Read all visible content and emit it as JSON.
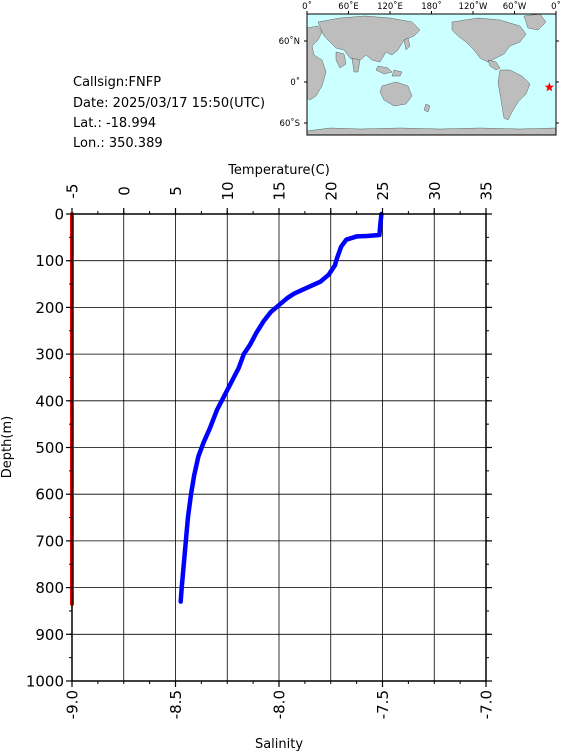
{
  "station": {
    "callsign": "Callsign:FNFP",
    "date": "Date:  2025/03/17 15:50(UTC)",
    "lat": "Lat.:  -18.994",
    "lon": "Lon.:  350.389"
  },
  "map": {
    "lon_labels": [
      "0˚",
      "60˚E",
      "120˚E",
      "180˚",
      "120˚W",
      "60˚W",
      "0˚"
    ],
    "lat_labels": [
      "60˚N",
      "0˚",
      "60˚S"
    ],
    "ocean_color": "#ccffff",
    "land_color": "#bdbdbd",
    "marker": {
      "lat": -18.994,
      "lon": 350.389,
      "color": "#ff0000",
      "icon": "star-icon"
    }
  },
  "chart_data": {
    "type": "line",
    "title": "",
    "top_axis": {
      "label": "Temperature(C)",
      "range": [
        -5,
        35
      ],
      "ticks": [
        -5,
        0,
        5,
        10,
        15,
        20,
        25,
        30,
        35
      ]
    },
    "bottom_axis": {
      "label": "Salinity",
      "range": [
        -9.0,
        -7.0
      ],
      "ticks": [
        "-9.0",
        "-8.5",
        "-8.0",
        "-7.5",
        "-7.0"
      ]
    },
    "y_axis": {
      "label": "Depth(m)",
      "range": [
        0,
        1000
      ],
      "inverted": true,
      "ticks": [
        0,
        100,
        200,
        300,
        400,
        500,
        600,
        700,
        800,
        900,
        1000
      ]
    },
    "grid": true,
    "series": [
      {
        "name": "",
        "axis": "temperature",
        "color": "#0000ff",
        "points": [
          [
            24.9,
            0
          ],
          [
            24.8,
            20
          ],
          [
            24.7,
            45
          ],
          [
            23.5,
            47
          ],
          [
            22.5,
            48
          ],
          [
            21.5,
            55
          ],
          [
            21.0,
            70
          ],
          [
            20.6,
            95
          ],
          [
            20.4,
            110
          ],
          [
            19.8,
            130
          ],
          [
            19.0,
            145
          ],
          [
            17.5,
            160
          ],
          [
            16.5,
            170
          ],
          [
            15.8,
            180
          ],
          [
            15.0,
            195
          ],
          [
            14.2,
            210
          ],
          [
            13.5,
            230
          ],
          [
            12.8,
            255
          ],
          [
            12.2,
            280
          ],
          [
            11.6,
            300
          ],
          [
            11.1,
            330
          ],
          [
            10.4,
            360
          ],
          [
            9.7,
            390
          ],
          [
            9.0,
            420
          ],
          [
            8.3,
            460
          ],
          [
            7.7,
            490
          ],
          [
            7.2,
            520
          ],
          [
            6.8,
            560
          ],
          [
            6.5,
            600
          ],
          [
            6.2,
            650
          ],
          [
            6.0,
            700
          ],
          [
            5.8,
            750
          ],
          [
            5.6,
            800
          ],
          [
            5.5,
            830
          ]
        ]
      },
      {
        "name": "",
        "axis": "salinity",
        "color": "#ff0000",
        "points": [
          [
            -9.0,
            0
          ],
          [
            -9.0,
            835
          ]
        ]
      }
    ]
  }
}
